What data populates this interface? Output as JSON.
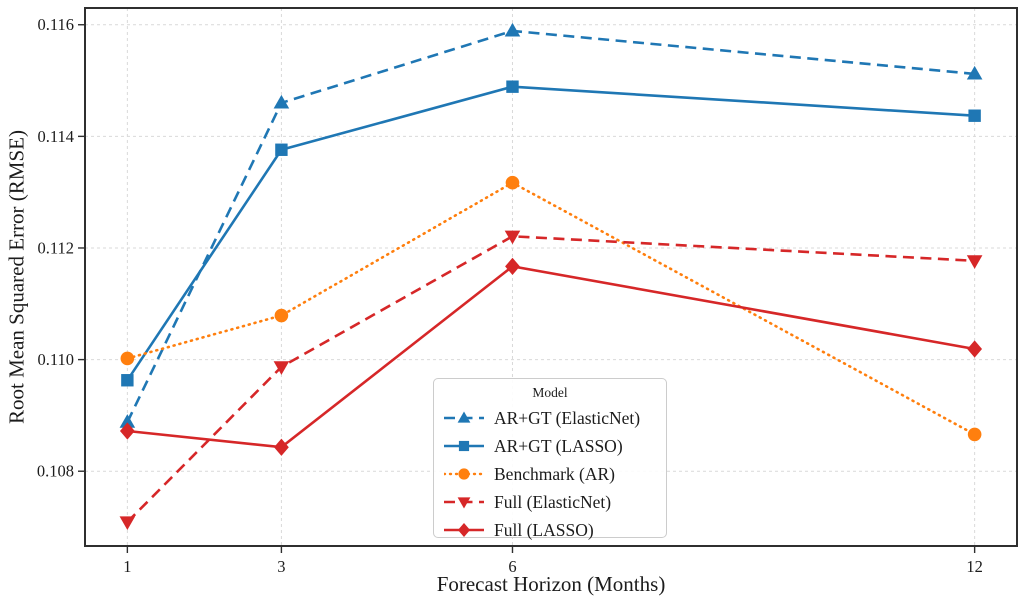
{
  "chart_data": {
    "type": "line",
    "title": "",
    "xlabel": "Forecast Horizon (Months)",
    "ylabel": "Root Mean Squared Error (RMSE)",
    "x": [
      1,
      3,
      6,
      12
    ],
    "xtick_labels": [
      "1",
      "3",
      "6",
      "12"
    ],
    "yticks": [
      0.108,
      0.11,
      0.112,
      0.114,
      0.116
    ],
    "ytick_labels": [
      "0.108",
      "0.110",
      "0.112",
      "0.114",
      "0.116"
    ],
    "xlim": [
      0.45,
      12.55
    ],
    "ylim": [
      0.10666,
      0.1163
    ],
    "grid": true,
    "grid_style": "dashed light gray, both axes",
    "legend_title": "Model",
    "legend_position": "inside lower-center",
    "colors": {
      "blue": "#1f77b4",
      "orange": "#ff7f0e",
      "red": "#d62728"
    },
    "series": [
      {
        "name": "AR+GT (ElasticNet)",
        "color": "#1f77b4",
        "linestyle": "dashed",
        "marker": "triangle-up",
        "values": [
          0.10888,
          0.1146,
          0.11589,
          0.11512
        ]
      },
      {
        "name": "AR+GT (LASSO)",
        "color": "#1f77b4",
        "linestyle": "solid",
        "marker": "square",
        "values": [
          0.10963,
          0.11376,
          0.11489,
          0.11437
        ]
      },
      {
        "name": "Benchmark (AR)",
        "color": "#ff7f0e",
        "linestyle": "dotted",
        "marker": "circle",
        "values": [
          0.11002,
          0.11079,
          0.11317,
          0.10866
        ]
      },
      {
        "name": "Full (ElasticNet)",
        "color": "#d62728",
        "linestyle": "dashed",
        "marker": "triangle-down",
        "values": [
          0.10709,
          0.10987,
          0.11221,
          0.11177
        ]
      },
      {
        "name": "Full (LASSO)",
        "color": "#d62728",
        "linestyle": "solid",
        "marker": "diamond",
        "values": [
          0.10872,
          0.10843,
          0.11167,
          0.11019
        ]
      }
    ]
  }
}
